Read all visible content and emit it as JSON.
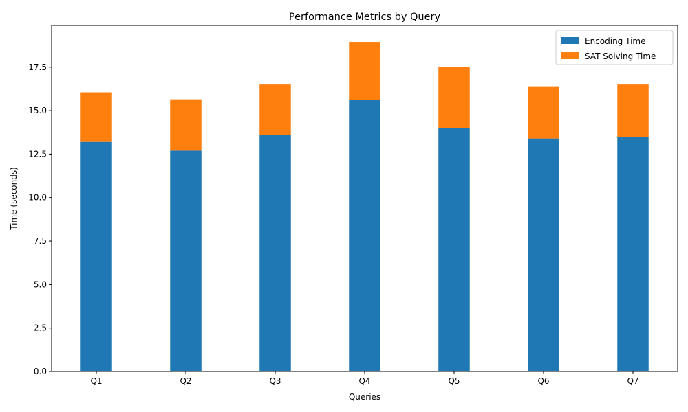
{
  "chart_data": {
    "type": "bar",
    "stacked": true,
    "title": "Performance Metrics by Query",
    "xlabel": "Queries",
    "ylabel": "Time (seconds)",
    "categories": [
      "Q1",
      "Q2",
      "Q3",
      "Q4",
      "Q5",
      "Q6",
      "Q7"
    ],
    "series": [
      {
        "name": "Encoding Time",
        "color": "#1f77b4",
        "values": [
          13.2,
          12.7,
          13.6,
          15.6,
          14.0,
          13.4,
          13.5
        ]
      },
      {
        "name": "SAT Solving Time",
        "color": "#ff7f0e",
        "values": [
          2.85,
          2.95,
          2.9,
          3.35,
          3.5,
          3.0,
          3.0
        ]
      }
    ],
    "ylim": [
      0,
      19.9
    ],
    "yticks": [
      "0.0",
      "2.5",
      "5.0",
      "7.5",
      "10.0",
      "12.5",
      "15.0",
      "17.5"
    ],
    "legend_position": "top-right",
    "grid": false
  }
}
